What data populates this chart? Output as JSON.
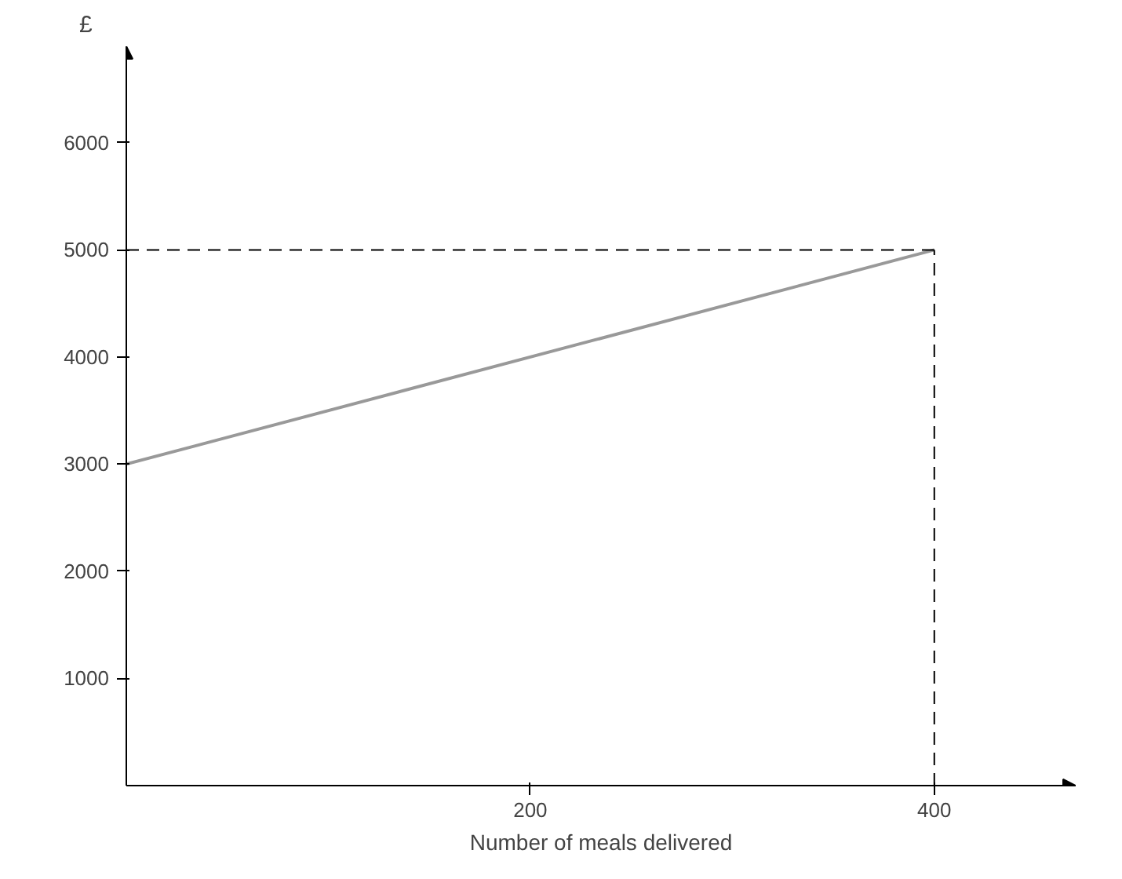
{
  "chart_data": {
    "type": "line",
    "xlabel": "Number of meals delivered",
    "ylabel": "£",
    "x": [
      0,
      400
    ],
    "series": [
      {
        "color": "#999999",
        "values": [
          3000,
          5000
        ]
      }
    ],
    "xlim": [
      0,
      470
    ],
    "ylim": [
      0,
      6900
    ],
    "xticks": [
      200,
      400
    ],
    "yticks": [
      1000,
      2000,
      3000,
      4000,
      5000,
      6000
    ],
    "grid": false,
    "marker": "none",
    "line_style": "solid",
    "ref_lines": [
      {
        "axis": "y",
        "value": 5000,
        "color": "#000000",
        "line_style": "dashed"
      },
      {
        "axis": "x",
        "value": 400,
        "color": "#000000",
        "line_style": "dashed"
      }
    ]
  }
}
